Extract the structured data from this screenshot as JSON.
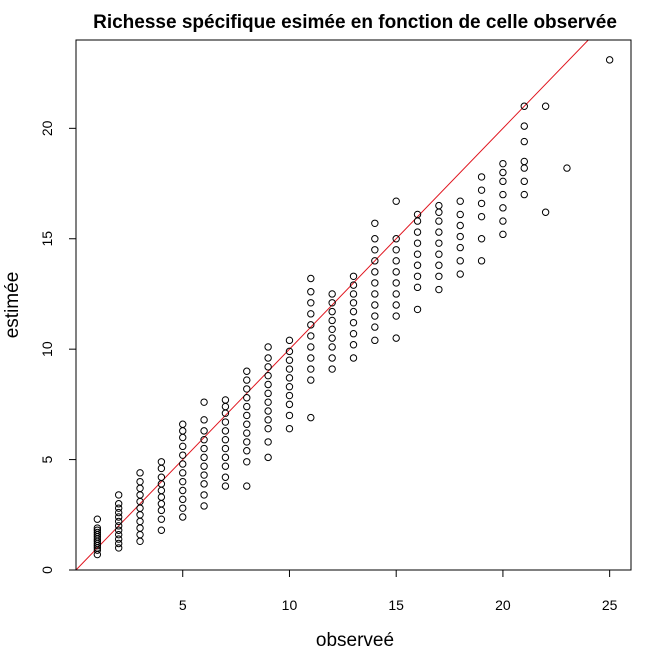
{
  "chart_data": {
    "type": "scatter",
    "title": "Richesse spécifique esimée en fonction de celle observée",
    "xlabel": "observeé",
    "ylabel": "estimée",
    "xlim": [
      0,
      26
    ],
    "ylim": [
      0,
      24
    ],
    "xticks": [
      5,
      10,
      15,
      20,
      25
    ],
    "yticks": [
      0,
      5,
      10,
      15,
      20
    ],
    "grid": false,
    "legend": "none",
    "reference_line": {
      "type": "identity",
      "intercept": 0,
      "slope": 1,
      "color": "#e0141e"
    },
    "point_color": "#000000",
    "points": [
      {
        "x": 1,
        "y": 0.7
      },
      {
        "x": 1,
        "y": 0.9
      },
      {
        "x": 1,
        "y": 1.0
      },
      {
        "x": 1,
        "y": 1.1
      },
      {
        "x": 1,
        "y": 1.2
      },
      {
        "x": 1,
        "y": 1.3
      },
      {
        "x": 1,
        "y": 1.4
      },
      {
        "x": 1,
        "y": 1.5
      },
      {
        "x": 1,
        "y": 1.6
      },
      {
        "x": 1,
        "y": 1.7
      },
      {
        "x": 1,
        "y": 1.8
      },
      {
        "x": 1,
        "y": 1.9
      },
      {
        "x": 1,
        "y": 2.3
      },
      {
        "x": 2,
        "y": 1.0
      },
      {
        "x": 2,
        "y": 1.2
      },
      {
        "x": 2,
        "y": 1.4
      },
      {
        "x": 2,
        "y": 1.6
      },
      {
        "x": 2,
        "y": 1.8
      },
      {
        "x": 2,
        "y": 2.0
      },
      {
        "x": 2,
        "y": 2.2
      },
      {
        "x": 2,
        "y": 2.4
      },
      {
        "x": 2,
        "y": 2.6
      },
      {
        "x": 2,
        "y": 2.8
      },
      {
        "x": 2,
        "y": 3.0
      },
      {
        "x": 2,
        "y": 3.4
      },
      {
        "x": 3,
        "y": 1.3
      },
      {
        "x": 3,
        "y": 1.6
      },
      {
        "x": 3,
        "y": 1.9
      },
      {
        "x": 3,
        "y": 2.2
      },
      {
        "x": 3,
        "y": 2.5
      },
      {
        "x": 3,
        "y": 2.8
      },
      {
        "x": 3,
        "y": 3.1
      },
      {
        "x": 3,
        "y": 3.4
      },
      {
        "x": 3,
        "y": 3.7
      },
      {
        "x": 3,
        "y": 4.0
      },
      {
        "x": 3,
        "y": 4.4
      },
      {
        "x": 4,
        "y": 1.8
      },
      {
        "x": 4,
        "y": 2.3
      },
      {
        "x": 4,
        "y": 2.7
      },
      {
        "x": 4,
        "y": 3.0
      },
      {
        "x": 4,
        "y": 3.3
      },
      {
        "x": 4,
        "y": 3.6
      },
      {
        "x": 4,
        "y": 3.9
      },
      {
        "x": 4,
        "y": 4.2
      },
      {
        "x": 4,
        "y": 4.6
      },
      {
        "x": 4,
        "y": 4.9
      },
      {
        "x": 5,
        "y": 2.4
      },
      {
        "x": 5,
        "y": 2.8
      },
      {
        "x": 5,
        "y": 3.2
      },
      {
        "x": 5,
        "y": 3.6
      },
      {
        "x": 5,
        "y": 4.0
      },
      {
        "x": 5,
        "y": 4.4
      },
      {
        "x": 5,
        "y": 4.8
      },
      {
        "x": 5,
        "y": 5.2
      },
      {
        "x": 5,
        "y": 5.6
      },
      {
        "x": 5,
        "y": 6.0
      },
      {
        "x": 5,
        "y": 6.3
      },
      {
        "x": 5,
        "y": 6.6
      },
      {
        "x": 6,
        "y": 2.9
      },
      {
        "x": 6,
        "y": 3.4
      },
      {
        "x": 6,
        "y": 3.9
      },
      {
        "x": 6,
        "y": 4.3
      },
      {
        "x": 6,
        "y": 4.7
      },
      {
        "x": 6,
        "y": 5.1
      },
      {
        "x": 6,
        "y": 5.5
      },
      {
        "x": 6,
        "y": 5.9
      },
      {
        "x": 6,
        "y": 6.3
      },
      {
        "x": 6,
        "y": 6.8
      },
      {
        "x": 6,
        "y": 7.6
      },
      {
        "x": 7,
        "y": 3.8
      },
      {
        "x": 7,
        "y": 4.2
      },
      {
        "x": 7,
        "y": 4.7
      },
      {
        "x": 7,
        "y": 5.1
      },
      {
        "x": 7,
        "y": 5.5
      },
      {
        "x": 7,
        "y": 5.9
      },
      {
        "x": 7,
        "y": 6.3
      },
      {
        "x": 7,
        "y": 6.7
      },
      {
        "x": 7,
        "y": 7.1
      },
      {
        "x": 7,
        "y": 7.4
      },
      {
        "x": 7,
        "y": 7.7
      },
      {
        "x": 8,
        "y": 3.8
      },
      {
        "x": 8,
        "y": 4.9
      },
      {
        "x": 8,
        "y": 5.4
      },
      {
        "x": 8,
        "y": 5.8
      },
      {
        "x": 8,
        "y": 6.2
      },
      {
        "x": 8,
        "y": 6.6
      },
      {
        "x": 8,
        "y": 7.0
      },
      {
        "x": 8,
        "y": 7.4
      },
      {
        "x": 8,
        "y": 7.8
      },
      {
        "x": 8,
        "y": 8.2
      },
      {
        "x": 8,
        "y": 8.6
      },
      {
        "x": 8,
        "y": 9.0
      },
      {
        "x": 9,
        "y": 5.1
      },
      {
        "x": 9,
        "y": 5.8
      },
      {
        "x": 9,
        "y": 6.4
      },
      {
        "x": 9,
        "y": 6.8
      },
      {
        "x": 9,
        "y": 7.2
      },
      {
        "x": 9,
        "y": 7.6
      },
      {
        "x": 9,
        "y": 8.0
      },
      {
        "x": 9,
        "y": 8.4
      },
      {
        "x": 9,
        "y": 8.8
      },
      {
        "x": 9,
        "y": 9.2
      },
      {
        "x": 9,
        "y": 9.6
      },
      {
        "x": 9,
        "y": 10.1
      },
      {
        "x": 10,
        "y": 6.4
      },
      {
        "x": 10,
        "y": 7.0
      },
      {
        "x": 10,
        "y": 7.5
      },
      {
        "x": 10,
        "y": 7.9
      },
      {
        "x": 10,
        "y": 8.3
      },
      {
        "x": 10,
        "y": 8.7
      },
      {
        "x": 10,
        "y": 9.1
      },
      {
        "x": 10,
        "y": 9.5
      },
      {
        "x": 10,
        "y": 9.9
      },
      {
        "x": 10,
        "y": 10.4
      },
      {
        "x": 11,
        "y": 6.9
      },
      {
        "x": 11,
        "y": 8.6
      },
      {
        "x": 11,
        "y": 9.1
      },
      {
        "x": 11,
        "y": 9.6
      },
      {
        "x": 11,
        "y": 10.1
      },
      {
        "x": 11,
        "y": 10.6
      },
      {
        "x": 11,
        "y": 11.1
      },
      {
        "x": 11,
        "y": 11.6
      },
      {
        "x": 11,
        "y": 12.1
      },
      {
        "x": 11,
        "y": 12.6
      },
      {
        "x": 11,
        "y": 13.2
      },
      {
        "x": 12,
        "y": 9.1
      },
      {
        "x": 12,
        "y": 9.6
      },
      {
        "x": 12,
        "y": 10.1
      },
      {
        "x": 12,
        "y": 10.5
      },
      {
        "x": 12,
        "y": 10.9
      },
      {
        "x": 12,
        "y": 11.3
      },
      {
        "x": 12,
        "y": 11.7
      },
      {
        "x": 12,
        "y": 12.1
      },
      {
        "x": 12,
        "y": 12.5
      },
      {
        "x": 13,
        "y": 9.6
      },
      {
        "x": 13,
        "y": 10.2
      },
      {
        "x": 13,
        "y": 10.7
      },
      {
        "x": 13,
        "y": 11.2
      },
      {
        "x": 13,
        "y": 11.7
      },
      {
        "x": 13,
        "y": 12.1
      },
      {
        "x": 13,
        "y": 12.5
      },
      {
        "x": 13,
        "y": 12.9
      },
      {
        "x": 13,
        "y": 13.3
      },
      {
        "x": 14,
        "y": 10.4
      },
      {
        "x": 14,
        "y": 11.0
      },
      {
        "x": 14,
        "y": 11.5
      },
      {
        "x": 14,
        "y": 12.0
      },
      {
        "x": 14,
        "y": 12.5
      },
      {
        "x": 14,
        "y": 13.0
      },
      {
        "x": 14,
        "y": 13.5
      },
      {
        "x": 14,
        "y": 14.0
      },
      {
        "x": 14,
        "y": 14.5
      },
      {
        "x": 14,
        "y": 15.0
      },
      {
        "x": 14,
        "y": 15.7
      },
      {
        "x": 15,
        "y": 10.5
      },
      {
        "x": 15,
        "y": 11.5
      },
      {
        "x": 15,
        "y": 12.0
      },
      {
        "x": 15,
        "y": 12.5
      },
      {
        "x": 15,
        "y": 13.0
      },
      {
        "x": 15,
        "y": 13.5
      },
      {
        "x": 15,
        "y": 14.0
      },
      {
        "x": 15,
        "y": 14.5
      },
      {
        "x": 15,
        "y": 15.0
      },
      {
        "x": 15,
        "y": 16.7
      },
      {
        "x": 16,
        "y": 11.8
      },
      {
        "x": 16,
        "y": 12.8
      },
      {
        "x": 16,
        "y": 13.3
      },
      {
        "x": 16,
        "y": 13.8
      },
      {
        "x": 16,
        "y": 14.3
      },
      {
        "x": 16,
        "y": 14.8
      },
      {
        "x": 16,
        "y": 15.3
      },
      {
        "x": 16,
        "y": 15.8
      },
      {
        "x": 16,
        "y": 16.1
      },
      {
        "x": 17,
        "y": 12.7
      },
      {
        "x": 17,
        "y": 13.3
      },
      {
        "x": 17,
        "y": 13.8
      },
      {
        "x": 17,
        "y": 14.3
      },
      {
        "x": 17,
        "y": 14.8
      },
      {
        "x": 17,
        "y": 15.3
      },
      {
        "x": 17,
        "y": 15.8
      },
      {
        "x": 17,
        "y": 16.2
      },
      {
        "x": 17,
        "y": 16.5
      },
      {
        "x": 18,
        "y": 13.4
      },
      {
        "x": 18,
        "y": 14.0
      },
      {
        "x": 18,
        "y": 14.6
      },
      {
        "x": 18,
        "y": 15.1
      },
      {
        "x": 18,
        "y": 15.6
      },
      {
        "x": 18,
        "y": 16.1
      },
      {
        "x": 18,
        "y": 16.7
      },
      {
        "x": 19,
        "y": 14.0
      },
      {
        "x": 19,
        "y": 15.0
      },
      {
        "x": 19,
        "y": 16.0
      },
      {
        "x": 19,
        "y": 16.6
      },
      {
        "x": 19,
        "y": 17.2
      },
      {
        "x": 19,
        "y": 17.8
      },
      {
        "x": 20,
        "y": 15.2
      },
      {
        "x": 20,
        "y": 15.8
      },
      {
        "x": 20,
        "y": 16.4
      },
      {
        "x": 20,
        "y": 17.0
      },
      {
        "x": 20,
        "y": 17.6
      },
      {
        "x": 20,
        "y": 18.0
      },
      {
        "x": 20,
        "y": 18.4
      },
      {
        "x": 21,
        "y": 17.0
      },
      {
        "x": 21,
        "y": 17.6
      },
      {
        "x": 21,
        "y": 18.2
      },
      {
        "x": 21,
        "y": 18.5
      },
      {
        "x": 21,
        "y": 19.4
      },
      {
        "x": 21,
        "y": 20.1
      },
      {
        "x": 21,
        "y": 21.0
      },
      {
        "x": 22,
        "y": 16.2
      },
      {
        "x": 22,
        "y": 21.0
      },
      {
        "x": 23,
        "y": 18.2
      },
      {
        "x": 25,
        "y": 23.1
      }
    ]
  }
}
